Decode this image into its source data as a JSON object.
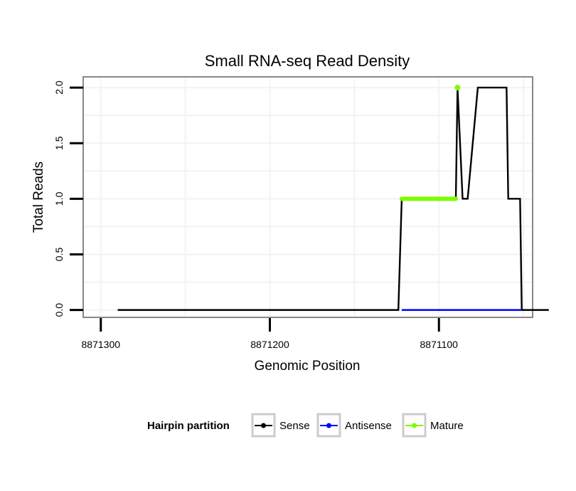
{
  "chart_data": {
    "type": "line",
    "title": "Small RNA-seq Read Density",
    "xlabel": "Genomic Position",
    "ylabel": "Total Reads",
    "x_reversed": true,
    "xlim": [
      8871310,
      8871045
    ],
    "ylim": [
      -0.06,
      2.09
    ],
    "x_ticks": [
      8871300,
      8871200,
      8871100
    ],
    "x_tick_labels": [
      "8871300",
      "8871200",
      "8871100"
    ],
    "y_ticks": [
      0,
      0.5,
      1,
      1.5,
      2
    ],
    "y_tick_labels": [
      "0.0",
      "0.5",
      "1.0",
      "1.5",
      "2.0"
    ],
    "grid": true,
    "legend": {
      "title": "Hairpin partition",
      "position": "bottom",
      "entries": [
        {
          "name": "Sense",
          "color": "#000000"
        },
        {
          "name": "Antisense",
          "color": "#0000ff"
        },
        {
          "name": "Mature",
          "color": "#7cfc00"
        }
      ]
    },
    "series": [
      {
        "name": "Sense",
        "color": "#000000",
        "x": [
          8871290,
          8871124,
          8871122,
          8871090,
          8871089,
          8871086,
          8871083,
          8871077,
          8871075,
          8871060,
          8871059,
          8871052,
          8871051,
          8871035
        ],
        "y": [
          0,
          0,
          1,
          1,
          2,
          1,
          1,
          2,
          2,
          2,
          1,
          1,
          0,
          0
        ]
      },
      {
        "name": "Antisense",
        "color": "#0000ff",
        "x": [
          8871122,
          8871051
        ],
        "y": [
          0,
          0
        ]
      },
      {
        "name": "Mature",
        "color": "#7cfc00",
        "segments": [
          {
            "x": [
              8871122,
              8871090
            ],
            "y": [
              1,
              1
            ]
          }
        ],
        "points": [
          {
            "x": 8871089,
            "y": 2
          }
        ]
      }
    ]
  }
}
